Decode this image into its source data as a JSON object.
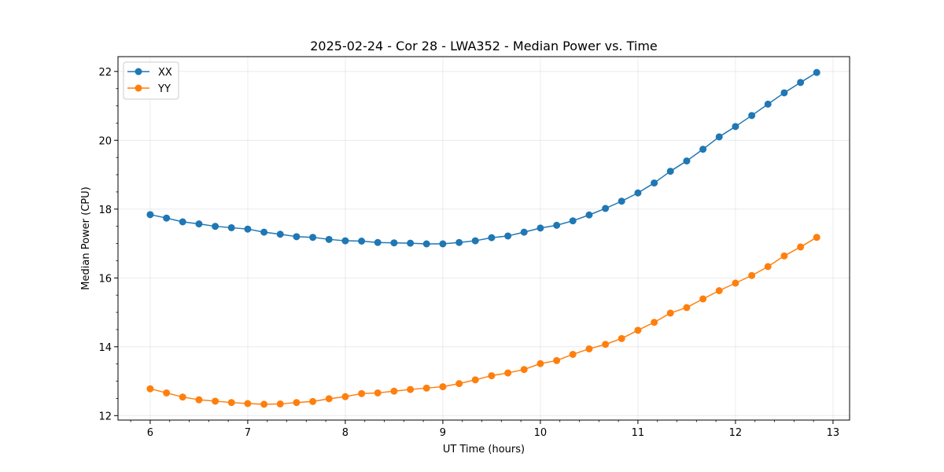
{
  "chart_data": {
    "type": "line",
    "title": "2025-02-24 - Cor 28 - LWA352 - Median Power vs. Time",
    "xlabel": "UT Time (hours)",
    "ylabel": "Median Power (CPU)",
    "xlim": [
      5.67,
      13.17
    ],
    "ylim": [
      11.87,
      22.43
    ],
    "xticks": [
      "6",
      "7",
      "8",
      "9",
      "10",
      "11",
      "12",
      "13"
    ],
    "yticks": [
      "12",
      "14",
      "16",
      "18",
      "20",
      "22"
    ],
    "grid": true,
    "legend_location": "top-left",
    "x": [
      6.0,
      6.167,
      6.333,
      6.5,
      6.667,
      6.833,
      7.0,
      7.167,
      7.333,
      7.5,
      7.667,
      7.833,
      8.0,
      8.167,
      8.333,
      8.5,
      8.667,
      8.833,
      9.0,
      9.167,
      9.333,
      9.5,
      9.667,
      9.833,
      10.0,
      10.167,
      10.333,
      10.5,
      10.667,
      10.833,
      11.0,
      11.167,
      11.333,
      11.5,
      11.667,
      11.833,
      12.0,
      12.167,
      12.333,
      12.5,
      12.667,
      12.833
    ],
    "series": [
      {
        "name": "XX",
        "color": "#1f77b4",
        "values": [
          17.84,
          17.74,
          17.63,
          17.57,
          17.5,
          17.46,
          17.42,
          17.33,
          17.27,
          17.2,
          17.18,
          17.12,
          17.08,
          17.07,
          17.03,
          17.02,
          17.01,
          16.99,
          16.99,
          17.03,
          17.08,
          17.17,
          17.22,
          17.33,
          17.45,
          17.53,
          17.66,
          17.83,
          18.02,
          18.23,
          18.47,
          18.76,
          19.1,
          19.4,
          19.74,
          20.1,
          20.4,
          20.72,
          21.05,
          21.38,
          21.68,
          21.97
        ]
      },
      {
        "name": "YY",
        "color": "#ff7f0e",
        "values": [
          12.78,
          12.66,
          12.54,
          12.46,
          12.42,
          12.38,
          12.35,
          12.33,
          12.34,
          12.38,
          12.41,
          12.49,
          12.55,
          12.64,
          12.66,
          12.71,
          12.76,
          12.8,
          12.84,
          12.93,
          13.04,
          13.16,
          13.24,
          13.34,
          13.51,
          13.6,
          13.78,
          13.94,
          14.07,
          14.24,
          14.48,
          14.71,
          14.98,
          15.14,
          15.39,
          15.63,
          15.85,
          16.07,
          16.33,
          16.64,
          16.9,
          17.18
        ]
      }
    ]
  }
}
